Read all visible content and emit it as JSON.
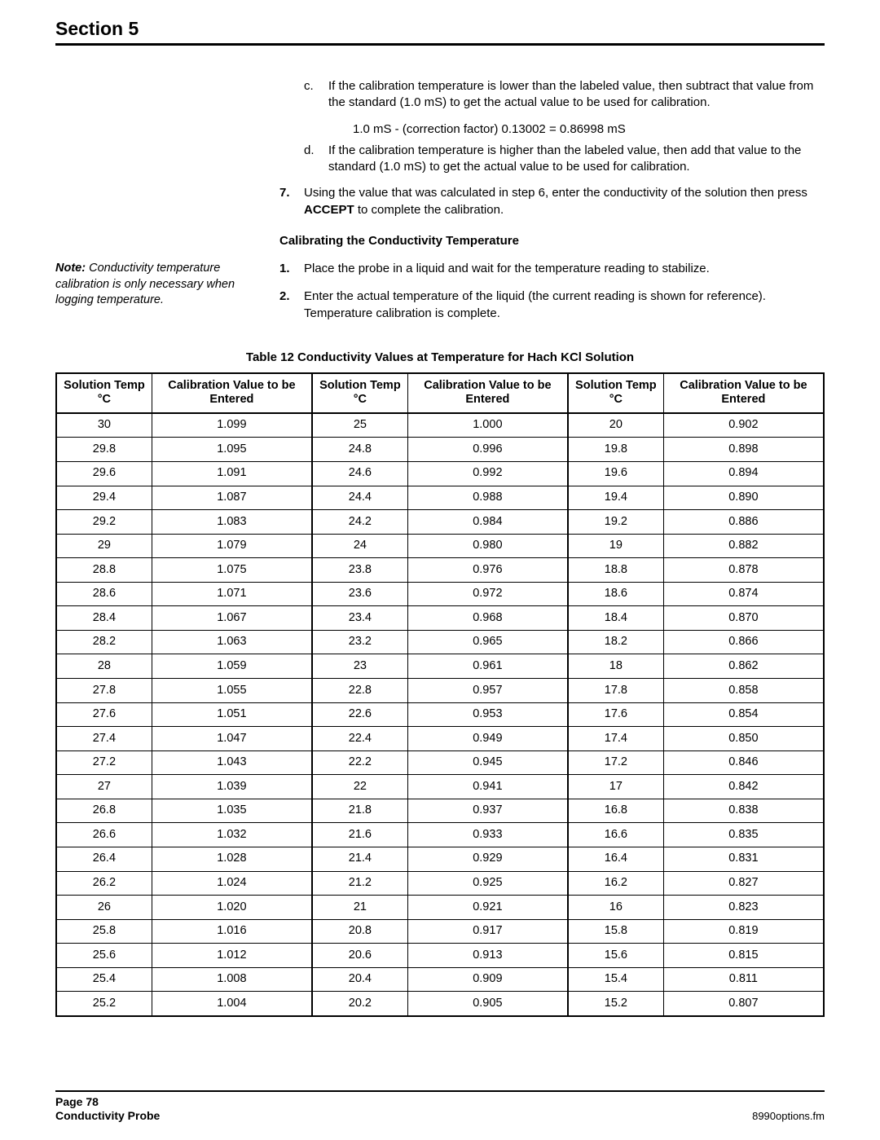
{
  "header": {
    "title": "Section 5"
  },
  "body": {
    "item_c": {
      "marker": "c.",
      "text": "If the calibration temperature is lower than the labeled value, then subtract that value from the standard (1.0 mS) to get the actual value to be used for calibration."
    },
    "formula": "1.0 mS - (correction factor) 0.13002 = 0.86998 mS",
    "item_d": {
      "marker": "d.",
      "text": "If the calibration temperature is higher than the labeled value, then add that value to the standard (1.0 mS) to get the actual value to be used for calibration."
    },
    "item_7": {
      "marker": "7.",
      "text_before": "Using the value that was calculated in step 6, enter the conductivity of the solution then press ",
      "accept": "ACCEPT",
      "text_after": " to complete the calibration."
    },
    "sub_heading": "Calibrating the Conductivity Temperature",
    "note": {
      "label": "Note:",
      "text": " Conductivity temperature calibration is only necessary when logging temperature."
    },
    "item_1": {
      "marker": "1.",
      "text": "Place the probe in a liquid and wait for the temperature reading to stabilize."
    },
    "item_2": {
      "marker": "2.",
      "text": "Enter the actual temperature of the liquid (the current reading is shown for reference). Temperature calibration is complete."
    }
  },
  "table": {
    "caption": "Table 12 Conductivity Values at Temperature for Hach KCl Solution",
    "headers": {
      "temp": "Solution Temp °C",
      "val": "Calibration Value to be Entered"
    },
    "rows": [
      [
        "30",
        "1.099",
        "25",
        "1.000",
        "20",
        "0.902"
      ],
      [
        "29.8",
        "1.095",
        "24.8",
        "0.996",
        "19.8",
        "0.898"
      ],
      [
        "29.6",
        "1.091",
        "24.6",
        "0.992",
        "19.6",
        "0.894"
      ],
      [
        "29.4",
        "1.087",
        "24.4",
        "0.988",
        "19.4",
        "0.890"
      ],
      [
        "29.2",
        "1.083",
        "24.2",
        "0.984",
        "19.2",
        "0.886"
      ],
      [
        "29",
        "1.079",
        "24",
        "0.980",
        "19",
        "0.882"
      ],
      [
        "28.8",
        "1.075",
        "23.8",
        "0.976",
        "18.8",
        "0.878"
      ],
      [
        "28.6",
        "1.071",
        "23.6",
        "0.972",
        "18.6",
        "0.874"
      ],
      [
        "28.4",
        "1.067",
        "23.4",
        "0.968",
        "18.4",
        "0.870"
      ],
      [
        "28.2",
        "1.063",
        "23.2",
        "0.965",
        "18.2",
        "0.866"
      ],
      [
        "28",
        "1.059",
        "23",
        "0.961",
        "18",
        "0.862"
      ],
      [
        "27.8",
        "1.055",
        "22.8",
        "0.957",
        "17.8",
        "0.858"
      ],
      [
        "27.6",
        "1.051",
        "22.6",
        "0.953",
        "17.6",
        "0.854"
      ],
      [
        "27.4",
        "1.047",
        "22.4",
        "0.949",
        "17.4",
        "0.850"
      ],
      [
        "27.2",
        "1.043",
        "22.2",
        "0.945",
        "17.2",
        "0.846"
      ],
      [
        "27",
        "1.039",
        "22",
        "0.941",
        "17",
        "0.842"
      ],
      [
        "26.8",
        "1.035",
        "21.8",
        "0.937",
        "16.8",
        "0.838"
      ],
      [
        "26.6",
        "1.032",
        "21.6",
        "0.933",
        "16.6",
        "0.835"
      ],
      [
        "26.4",
        "1.028",
        "21.4",
        "0.929",
        "16.4",
        "0.831"
      ],
      [
        "26.2",
        "1.024",
        "21.2",
        "0.925",
        "16.2",
        "0.827"
      ],
      [
        "26",
        "1.020",
        "21",
        "0.921",
        "16",
        "0.823"
      ],
      [
        "25.8",
        "1.016",
        "20.8",
        "0.917",
        "15.8",
        "0.819"
      ],
      [
        "25.6",
        "1.012",
        "20.6",
        "0.913",
        "15.6",
        "0.815"
      ],
      [
        "25.4",
        "1.008",
        "20.4",
        "0.909",
        "15.4",
        "0.811"
      ],
      [
        "25.2",
        "1.004",
        "20.2",
        "0.905",
        "15.2",
        "0.807"
      ]
    ]
  },
  "footer": {
    "page": "Page 78",
    "title": "Conductivity Probe",
    "right": "8990options.fm"
  }
}
